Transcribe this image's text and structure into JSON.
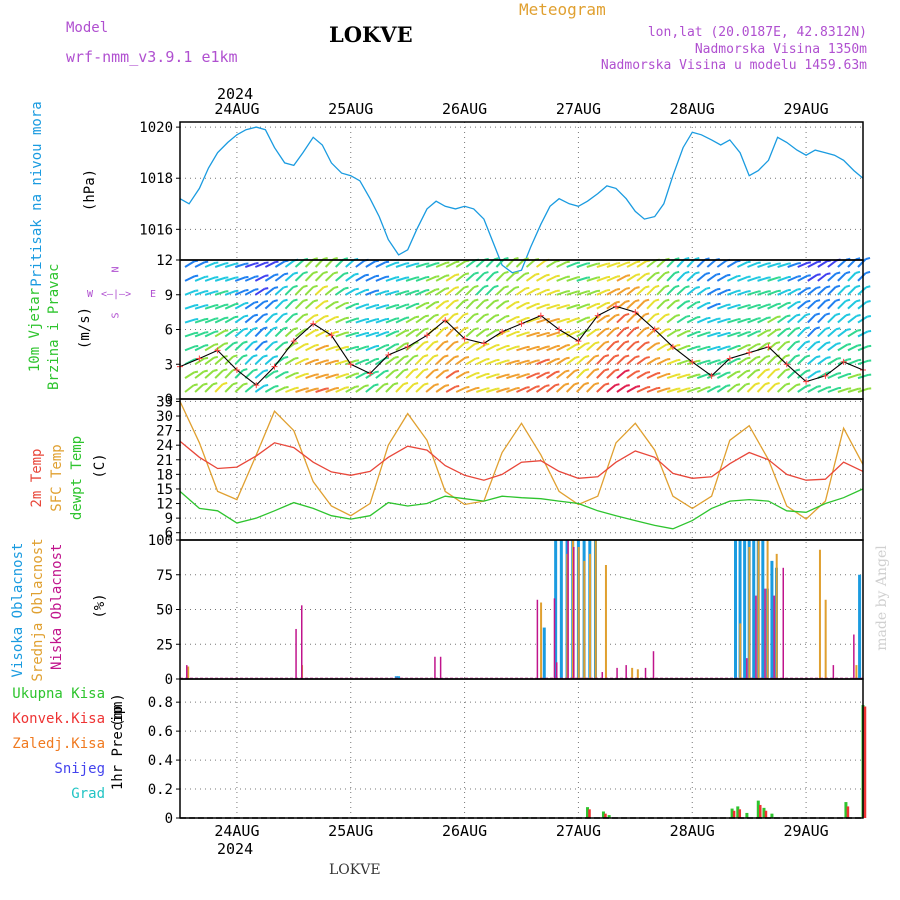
{
  "header": {
    "model_label": "Model",
    "model_name": "wrf-nmm_v3.9.1  e1km",
    "station": "LOKVE",
    "meteogram": "Meteogram",
    "lonlat": "lon,lat (20.0187E, 42.8312N)",
    "altitude": "Nadmorska Visina 1350m",
    "model_altitude": "Nadmorska Visina u modelu 1459.63m",
    "year_top": "2024",
    "year_bottom": "2024",
    "footer_station": "LOKVE",
    "credit": "made by Angel"
  },
  "colors": {
    "pressure": "#1a9be0",
    "t2m": "#e8473a",
    "sfc": "#e0a030",
    "dewpt": "#2ec42e",
    "high_cloud": "#1a9be0",
    "mid_cloud": "#e0a030",
    "low_cloud": "#c0148c",
    "total_precip": "#2ec42e",
    "conv_precip": "#ee3333",
    "frz_precip": "#f07a20",
    "snow": "#4444ee",
    "hail": "#22c4c4",
    "legend_purple": "#b050d0"
  },
  "chart_data": [
    {
      "type": "line",
      "panel": "pressure",
      "ylabel": "Pritisak na nivou mora",
      "unit": "(hPa)",
      "yticks": [
        "1016",
        "1018",
        "1020"
      ],
      "ylim": [
        1014.8,
        1020.2
      ],
      "x_categories": [
        "24AUG",
        "25AUG",
        "26AUG",
        "27AUG",
        "28AUG",
        "29AUG"
      ],
      "x_start": -0.5,
      "x_end": 5.5,
      "series": [
        {
          "x": [
            -0.5,
            -0.42,
            -0.33,
            -0.25,
            -0.17,
            -0.08,
            0,
            0.08,
            0.17,
            0.25,
            0.33,
            0.42,
            0.5,
            0.58,
            0.67,
            0.75,
            0.83,
            0.92,
            1,
            1.08,
            1.17,
            1.25,
            1.33,
            1.42,
            1.5,
            1.58,
            1.67,
            1.75,
            1.83,
            1.92,
            2,
            2.08,
            2.17,
            2.25,
            2.33,
            2.42,
            2.5,
            2.58,
            2.67,
            2.75,
            2.83,
            2.92,
            3,
            3.08,
            3.17,
            3.25,
            3.33,
            3.42,
            3.5,
            3.58,
            3.67,
            3.75,
            3.83,
            3.92,
            4,
            4.08,
            4.17,
            4.25,
            4.33,
            4.42,
            4.5,
            4.58,
            4.67,
            4.75,
            4.83,
            4.92,
            5,
            5.08,
            5.17,
            5.25,
            5.33,
            5.42,
            5.5
          ],
          "values": [
            1017.2,
            1017.0,
            1017.6,
            1018.4,
            1019.0,
            1019.4,
            1019.7,
            1019.9,
            1020.0,
            1019.9,
            1019.2,
            1018.6,
            1018.5,
            1019.0,
            1019.6,
            1019.3,
            1018.6,
            1018.2,
            1018.1,
            1017.9,
            1017.2,
            1016.5,
            1015.6,
            1015.0,
            1015.2,
            1016.0,
            1016.8,
            1017.1,
            1016.9,
            1016.8,
            1016.9,
            1016.8,
            1016.4,
            1015.5,
            1014.6,
            1014.3,
            1014.4,
            1015.3,
            1016.2,
            1016.9,
            1017.2,
            1017.0,
            1016.9,
            1017.1,
            1017.4,
            1017.7,
            1017.6,
            1017.2,
            1016.7,
            1016.4,
            1016.5,
            1017.0,
            1018.1,
            1019.2,
            1019.8,
            1019.7,
            1019.5,
            1019.3,
            1019.5,
            1019.0,
            1018.1,
            1018.3,
            1018.7,
            1019.6,
            1019.4,
            1019.1,
            1018.9,
            1019.1,
            1019.0,
            1018.9,
            1018.7,
            1018.3,
            1018.0
          ]
        }
      ]
    },
    {
      "type": "barbs",
      "panel": "wind",
      "ylabel": [
        "10m Vjetar",
        "Brzina i Pravac"
      ],
      "unit": "(m/s)",
      "compass": {
        "n": "N",
        "s": "S",
        "w": "W",
        "e": "E"
      },
      "yticks": [
        "0",
        "3",
        "6",
        "9",
        "12"
      ],
      "ylim": [
        0,
        12
      ],
      "speed": {
        "x": [
          -0.5,
          -0.33,
          -0.17,
          0,
          0.17,
          0.33,
          0.5,
          0.67,
          0.83,
          1,
          1.17,
          1.33,
          1.5,
          1.67,
          1.83,
          2,
          2.17,
          2.33,
          2.5,
          2.67,
          2.83,
          3,
          3.17,
          3.33,
          3.5,
          3.67,
          3.83,
          4,
          4.17,
          4.33,
          4.5,
          4.67,
          4.83,
          5,
          5.17,
          5.33,
          5.5
        ],
        "values": [
          2.8,
          3.5,
          4.2,
          2.5,
          1.2,
          2.8,
          5.0,
          6.5,
          5.5,
          3.0,
          2.2,
          3.8,
          4.5,
          5.5,
          6.8,
          5.2,
          4.8,
          5.8,
          6.5,
          7.2,
          6.0,
          5.0,
          7.2,
          8.0,
          7.5,
          6.0,
          4.5,
          3.2,
          2.0,
          3.5,
          4.0,
          4.5,
          3.0,
          1.5,
          2.0,
          3.2,
          2.5
        ]
      }
    },
    {
      "type": "line",
      "panel": "temperature",
      "ylabel": [
        "2m Temp",
        "SFC Temp",
        "dewpt Temp"
      ],
      "unit": "(C)",
      "yticks": [
        "6",
        "9",
        "12",
        "15",
        "18",
        "21",
        "24",
        "27",
        "30",
        "33"
      ],
      "ylim": [
        4.5,
        33.5
      ],
      "series": [
        {
          "name": "2m Temp",
          "x": [
            -0.5,
            -0.33,
            -0.17,
            0,
            0.17,
            0.33,
            0.5,
            0.67,
            0.83,
            1,
            1.17,
            1.33,
            1.5,
            1.67,
            1.83,
            2,
            2.17,
            2.33,
            2.5,
            2.67,
            2.83,
            3,
            3.17,
            3.33,
            3.5,
            3.67,
            3.83,
            4,
            4.17,
            4.33,
            4.5,
            4.67,
            4.83,
            5,
            5.17,
            5.33,
            5.5
          ],
          "values": [
            24.8,
            21.5,
            19.2,
            19.5,
            21.8,
            24.5,
            23.5,
            20.5,
            18.5,
            17.8,
            18.6,
            21.5,
            23.8,
            23.0,
            19.8,
            17.8,
            16.8,
            18.0,
            20.5,
            20.8,
            18.6,
            17.2,
            17.5,
            20.5,
            22.8,
            21.5,
            18.2,
            17.2,
            17.5,
            20.2,
            22.5,
            21.0,
            18.0,
            16.8,
            17.0,
            20.5,
            18.6
          ]
        },
        {
          "name": "SFC Temp",
          "x": [
            -0.5,
            -0.33,
            -0.17,
            0,
            0.17,
            0.33,
            0.5,
            0.67,
            0.83,
            1,
            1.17,
            1.33,
            1.5,
            1.67,
            1.83,
            2,
            2.17,
            2.33,
            2.5,
            2.67,
            2.83,
            3,
            3.17,
            3.33,
            3.5,
            3.67,
            3.83,
            4,
            4.17,
            4.33,
            4.5,
            4.67,
            4.83,
            5,
            5.17,
            5.33,
            5.5
          ],
          "values": [
            33.0,
            24.5,
            14.5,
            12.8,
            22.0,
            31.0,
            27.0,
            16.5,
            11.5,
            9.5,
            12.0,
            24.0,
            30.5,
            25.0,
            14.5,
            11.8,
            12.5,
            22.5,
            28.5,
            22.0,
            14.5,
            11.8,
            13.5,
            24.5,
            28.5,
            23.0,
            13.5,
            11.0,
            13.5,
            25.0,
            28.0,
            21.0,
            11.5,
            8.8,
            12.5,
            27.5,
            20.0
          ]
        },
        {
          "name": "dewpt Temp",
          "x": [
            -0.5,
            -0.33,
            -0.17,
            0,
            0.17,
            0.33,
            0.5,
            0.67,
            0.83,
            1,
            1.17,
            1.33,
            1.5,
            1.67,
            1.83,
            2,
            2.17,
            2.33,
            2.5,
            2.67,
            2.83,
            3,
            3.17,
            3.33,
            3.5,
            3.67,
            3.83,
            4,
            4.17,
            4.33,
            4.5,
            4.67,
            4.83,
            5,
            5.17,
            5.33,
            5.5
          ],
          "values": [
            14.5,
            11.0,
            10.5,
            8.0,
            9.0,
            10.5,
            12.2,
            11.0,
            9.5,
            8.8,
            9.5,
            12.2,
            11.5,
            12.0,
            13.5,
            13.0,
            12.5,
            13.5,
            13.2,
            13.0,
            12.5,
            12.0,
            10.5,
            9.5,
            8.5,
            7.5,
            6.8,
            8.5,
            11.0,
            12.5,
            12.8,
            12.5,
            10.5,
            10.2,
            12.0,
            13.2,
            15.0
          ]
        }
      ]
    },
    {
      "type": "bar",
      "panel": "clouds",
      "ylabel": [
        "Visoka Oblacnost",
        "Srednja Oblacnost",
        "Niska Oblacnost"
      ],
      "unit": "(%)",
      "yticks": [
        "0",
        "25",
        "50",
        "75",
        "100"
      ],
      "ylim": [
        0,
        100
      ],
      "series": [
        {
          "name": "Visoka Oblacnost",
          "x": [
            1.4,
            1.42,
            2.7,
            2.8,
            2.85,
            2.9,
            2.95,
            3.0,
            3.05,
            3.1,
            3.15,
            4.38,
            4.42,
            4.46,
            4.5,
            4.54,
            4.58,
            4.62,
            4.66,
            4.7,
            4.74,
            5.47
          ],
          "values": [
            2,
            2,
            37,
            100,
            100,
            100,
            100,
            100,
            100,
            100,
            100,
            100,
            100,
            100,
            100,
            100,
            100,
            100,
            65,
            85,
            80,
            75
          ]
        },
        {
          "name": "Srednja Oblacnost",
          "x": [
            -0.45,
            0.55,
            2.65,
            2.88,
            2.93,
            2.98,
            3.03,
            3.08,
            3.13,
            3.22,
            3.45,
            3.5,
            4.4,
            4.48,
            4.56,
            4.64,
            4.72,
            5.1,
            5.15,
            5.42
          ],
          "values": [
            9,
            10,
            55,
            90,
            100,
            95,
            85,
            90,
            100,
            82,
            8,
            7,
            40,
            95,
            100,
            100,
            90,
            93,
            57,
            10
          ]
        },
        {
          "name": "Niska Oblacnost",
          "x": [
            -0.48,
            0.48,
            0.53,
            1.7,
            1.75,
            2.6,
            2.75,
            2.77,
            2.87,
            2.92,
            3.17,
            3.3,
            3.38,
            3.55,
            3.62,
            4.44,
            4.52,
            4.6,
            4.68,
            4.76,
            5.2,
            5.38
          ],
          "values": [
            10,
            36,
            53,
            16,
            16,
            57,
            58,
            12,
            100,
            95,
            5,
            8,
            10,
            8,
            20,
            15,
            60,
            65,
            60,
            80,
            10,
            32
          ]
        }
      ]
    },
    {
      "type": "bar",
      "panel": "precip",
      "ylabel": "1hr Precip",
      "unit": "(mm)",
      "legend": [
        "Ukupna Kisa",
        "Konvek.Kisa",
        "Zaledj.Kisa",
        "Snijeg",
        "Grad"
      ],
      "yticks": [
        "0",
        "0.2",
        "0.4",
        "0.6",
        "0.8"
      ],
      "ylim": [
        0,
        0.96
      ],
      "series": [
        {
          "name": "Ukupna Kisa",
          "x": [
            2.55,
            3.08,
            3.22,
            3.27,
            4.35,
            4.4,
            4.48,
            4.58,
            4.63,
            4.7,
            5.35,
            5.5
          ],
          "values": [
            0.005,
            0.075,
            0.045,
            0.02,
            0.065,
            0.08,
            0.035,
            0.12,
            0.07,
            0.03,
            0.11,
            0.78
          ]
        },
        {
          "name": "Konvek.Kisa",
          "x": [
            3.08,
            3.22,
            4.35,
            4.4,
            4.58,
            4.63,
            5.35,
            5.5
          ],
          "values": [
            0.06,
            0.03,
            0.05,
            0.06,
            0.09,
            0.05,
            0.08,
            0.77
          ]
        }
      ]
    }
  ]
}
